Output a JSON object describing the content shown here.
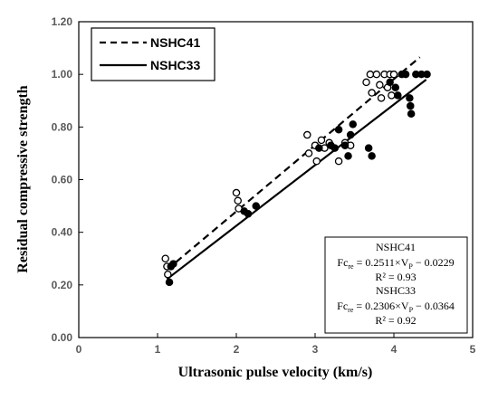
{
  "chart_data": {
    "type": "scatter",
    "xlabel": "Ultrasonic pulse velocity (km/s)",
    "ylabel": "Residual compressive strength",
    "xlim": [
      0,
      5
    ],
    "ylim": [
      0,
      1.2
    ],
    "x_ticks": [
      "0",
      "1",
      "2",
      "3",
      "4",
      "5"
    ],
    "y_ticks": [
      "0.00",
      "0.20",
      "0.40",
      "0.60",
      "0.80",
      "1.00",
      "1.20"
    ],
    "grid": false,
    "legend": {
      "placement": "top-left",
      "entries": [
        "NSHC41",
        "NSHC33"
      ]
    },
    "series": [
      {
        "name": "NSHC41",
        "marker": "open-circle",
        "line_style": "dashed",
        "fit": {
          "x": [
            1.12,
            4.33
          ],
          "y": [
            0.258,
            1.065
          ]
        },
        "points": [
          {
            "x": 1.1,
            "y": 0.3
          },
          {
            "x": 1.12,
            "y": 0.27
          },
          {
            "x": 1.13,
            "y": 0.24
          },
          {
            "x": 2.0,
            "y": 0.55
          },
          {
            "x": 2.02,
            "y": 0.52
          },
          {
            "x": 2.03,
            "y": 0.49
          },
          {
            "x": 2.9,
            "y": 0.77
          },
          {
            "x": 2.92,
            "y": 0.7
          },
          {
            "x": 3.0,
            "y": 0.73
          },
          {
            "x": 3.02,
            "y": 0.67
          },
          {
            "x": 3.08,
            "y": 0.75
          },
          {
            "x": 3.12,
            "y": 0.72
          },
          {
            "x": 3.18,
            "y": 0.74
          },
          {
            "x": 3.3,
            "y": 0.67
          },
          {
            "x": 3.38,
            "y": 0.74
          },
          {
            "x": 3.45,
            "y": 0.73
          },
          {
            "x": 3.65,
            "y": 0.97
          },
          {
            "x": 3.7,
            "y": 1.0
          },
          {
            "x": 3.72,
            "y": 0.93
          },
          {
            "x": 3.78,
            "y": 1.0
          },
          {
            "x": 3.82,
            "y": 0.96
          },
          {
            "x": 3.84,
            "y": 0.91
          },
          {
            "x": 3.88,
            "y": 1.0
          },
          {
            "x": 3.92,
            "y": 0.95
          },
          {
            "x": 3.95,
            "y": 1.0
          },
          {
            "x": 3.97,
            "y": 0.92
          },
          {
            "x": 4.0,
            "y": 1.0
          }
        ]
      },
      {
        "name": "NSHC33",
        "marker": "filled-circle",
        "line_style": "solid",
        "fit": {
          "x": [
            1.12,
            4.41
          ],
          "y": [
            0.222,
            0.98
          ]
        },
        "points": [
          {
            "x": 1.15,
            "y": 0.21
          },
          {
            "x": 1.17,
            "y": 0.27
          },
          {
            "x": 1.2,
            "y": 0.28
          },
          {
            "x": 2.1,
            "y": 0.48
          },
          {
            "x": 2.15,
            "y": 0.47
          },
          {
            "x": 2.25,
            "y": 0.5
          },
          {
            "x": 3.05,
            "y": 0.72
          },
          {
            "x": 3.2,
            "y": 0.73
          },
          {
            "x": 3.25,
            "y": 0.72
          },
          {
            "x": 3.3,
            "y": 0.79
          },
          {
            "x": 3.38,
            "y": 0.73
          },
          {
            "x": 3.42,
            "y": 0.69
          },
          {
            "x": 3.45,
            "y": 0.77
          },
          {
            "x": 3.48,
            "y": 0.81
          },
          {
            "x": 3.68,
            "y": 0.72
          },
          {
            "x": 3.72,
            "y": 0.69
          },
          {
            "x": 3.95,
            "y": 0.97
          },
          {
            "x": 4.02,
            "y": 0.95
          },
          {
            "x": 4.05,
            "y": 0.92
          },
          {
            "x": 4.1,
            "y": 1.0
          },
          {
            "x": 4.15,
            "y": 1.0
          },
          {
            "x": 4.2,
            "y": 0.91
          },
          {
            "x": 4.21,
            "y": 0.88
          },
          {
            "x": 4.22,
            "y": 0.85
          },
          {
            "x": 4.28,
            "y": 1.0
          },
          {
            "x": 4.35,
            "y": 1.0
          },
          {
            "x": 4.42,
            "y": 1.0
          }
        ]
      }
    ],
    "annotation": {
      "lines": [
        {
          "text": "NSHC41"
        },
        {
          "text": "Fc",
          "sub": "re",
          "tail": " = 0.2511×V",
          "sub2": "P",
          "tail2": " − 0.0229"
        },
        {
          "text": "R² = 0.93"
        },
        {
          "text": "NSHC33"
        },
        {
          "text": "Fc",
          "sub": "re",
          "tail": " = 0.2306×V",
          "sub2": "P",
          "tail2": " − 0.0364"
        },
        {
          "text": "R² = 0.92"
        }
      ]
    },
    "colors": {
      "axis": "#000000",
      "tick_text": "#595959",
      "marker": "#000000"
    }
  }
}
